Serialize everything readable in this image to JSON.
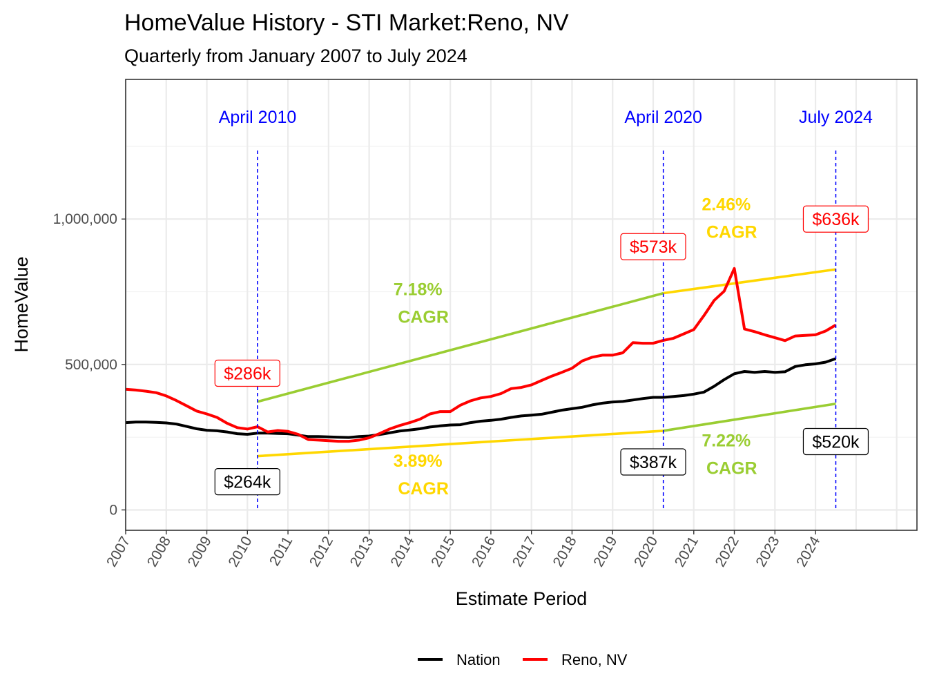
{
  "chart_data": {
    "type": "line",
    "title": "HomeValue History - STI Market:Reno, NV",
    "subtitle": "Quarterly from January 2007 to July 2024",
    "xlabel": "Estimate Period",
    "ylabel": "HomeValue",
    "xlim": [
      2007,
      2026.5
    ],
    "ylim": [
      -70000,
      1480000
    ],
    "x_ticks": [
      2007,
      2008,
      2009,
      2010,
      2011,
      2012,
      2013,
      2014,
      2015,
      2016,
      2017,
      2018,
      2019,
      2020,
      2021,
      2022,
      2023,
      2024
    ],
    "y_ticks": [
      {
        "value": 0,
        "label": "0"
      },
      {
        "value": 500000,
        "label": "500,000"
      },
      {
        "value": 1000000,
        "label": "1,000,000"
      }
    ],
    "grid": true,
    "legend_position": "bottom",
    "series": [
      {
        "name": "Nation",
        "color": "#000000",
        "x": [
          2007.0,
          2007.25,
          2007.5,
          2007.75,
          2008.0,
          2008.25,
          2008.5,
          2008.75,
          2009.0,
          2009.25,
          2009.5,
          2009.75,
          2010.0,
          2010.25,
          2010.5,
          2010.75,
          2011.0,
          2011.25,
          2011.5,
          2011.75,
          2012.0,
          2012.25,
          2012.5,
          2012.75,
          2013.0,
          2013.25,
          2013.5,
          2013.75,
          2014.0,
          2014.25,
          2014.5,
          2014.75,
          2015.0,
          2015.25,
          2015.5,
          2015.75,
          2016.0,
          2016.25,
          2016.5,
          2016.75,
          2017.0,
          2017.25,
          2017.5,
          2017.75,
          2018.0,
          2018.25,
          2018.5,
          2018.75,
          2019.0,
          2019.25,
          2019.5,
          2019.75,
          2020.0,
          2020.25,
          2020.5,
          2020.75,
          2021.0,
          2021.25,
          2021.5,
          2021.75,
          2022.0,
          2022.25,
          2022.5,
          2022.75,
          2023.0,
          2023.25,
          2023.5,
          2023.75,
          2024.0,
          2024.25,
          2024.5
        ],
        "values": [
          300000,
          302000,
          302000,
          301000,
          299000,
          295000,
          287000,
          279000,
          274000,
          272000,
          268000,
          262000,
          260000,
          264000,
          264000,
          263000,
          262000,
          257000,
          252000,
          252000,
          251000,
          250000,
          249000,
          252000,
          254000,
          259000,
          265000,
          271000,
          275000,
          279000,
          285000,
          289000,
          292000,
          293000,
          300000,
          305000,
          308000,
          312000,
          318000,
          323000,
          326000,
          329000,
          336000,
          343000,
          348000,
          353000,
          361000,
          367000,
          371000,
          373000,
          378000,
          383000,
          387000,
          387000,
          390000,
          393000,
          398000,
          405000,
          425000,
          448000,
          468000,
          476000,
          473000,
          476000,
          473000,
          475000,
          493000,
          499000,
          502000,
          508000,
          520000
        ]
      },
      {
        "name": "Reno, NV",
        "color": "#ff0000",
        "x": [
          2007.0,
          2007.25,
          2007.5,
          2007.75,
          2008.0,
          2008.25,
          2008.5,
          2008.75,
          2009.0,
          2009.25,
          2009.5,
          2009.75,
          2010.0,
          2010.25,
          2010.5,
          2010.75,
          2011.0,
          2011.25,
          2011.5,
          2011.75,
          2012.0,
          2012.25,
          2012.5,
          2012.75,
          2013.0,
          2013.25,
          2013.5,
          2013.75,
          2014.0,
          2014.25,
          2014.5,
          2014.75,
          2015.0,
          2015.25,
          2015.5,
          2015.75,
          2016.0,
          2016.25,
          2016.5,
          2016.75,
          2017.0,
          2017.25,
          2017.5,
          2017.75,
          2018.0,
          2018.25,
          2018.5,
          2018.75,
          2019.0,
          2019.25,
          2019.5,
          2019.75,
          2020.0,
          2020.25,
          2020.5,
          2020.75,
          2021.0,
          2021.25,
          2021.5,
          2021.75,
          2022.0,
          2022.25,
          2022.5,
          2022.75,
          2023.0,
          2023.25,
          2023.5,
          2023.75,
          2024.0,
          2024.25,
          2024.5
        ],
        "values": [
          415000,
          412000,
          408000,
          403000,
          392000,
          376000,
          358000,
          340000,
          330000,
          318000,
          298000,
          283000,
          278000,
          286000,
          268000,
          273000,
          270000,
          260000,
          242000,
          240000,
          238000,
          236000,
          236000,
          240000,
          248000,
          262000,
          278000,
          290000,
          300000,
          312000,
          330000,
          338000,
          338000,
          360000,
          375000,
          385000,
          390000,
          400000,
          417000,
          421000,
          430000,
          445000,
          460000,
          473000,
          487000,
          512000,
          525000,
          532000,
          532000,
          540000,
          575000,
          573000,
          573000,
          583000,
          590000,
          605000,
          620000,
          668000,
          720000,
          752000,
          830000,
          622000,
          613000,
          602000,
          592000,
          582000,
          598000,
          600000,
          602000,
          615000,
          636000
        ]
      }
    ],
    "events": [
      {
        "x": 2010.25,
        "label": "April 2010"
      },
      {
        "x": 2020.25,
        "label": "April 2020"
      },
      {
        "x": 2024.5,
        "label": "July 2024"
      }
    ],
    "value_labels": [
      {
        "x": 2010.0,
        "y": 470000,
        "text": "$286k",
        "series": "Reno, NV"
      },
      {
        "x": 2010.0,
        "y": 97000,
        "text": "$264k",
        "series": "Nation"
      },
      {
        "x": 2020.0,
        "y": 905000,
        "text": "$573k",
        "series": "Reno, NV"
      },
      {
        "x": 2020.0,
        "y": 165000,
        "text": "$387k",
        "series": "Nation"
      },
      {
        "x": 2024.5,
        "y": 1000000,
        "text": "$636k",
        "series": "Reno, NV"
      },
      {
        "x": 2024.5,
        "y": 235000,
        "text": "$520k",
        "series": "Nation"
      }
    ],
    "trend_lines": [
      {
        "x": [
          2010.25,
          2020.25
        ],
        "y": [
          372000,
          745000
        ],
        "color": "#9acd32"
      },
      {
        "x": [
          2020.25,
          2024.5
        ],
        "y": [
          745000,
          827000
        ],
        "color": "#ffd700"
      },
      {
        "x": [
          2010.25,
          2020.25
        ],
        "y": [
          185000,
          272000
        ],
        "color": "#ffd700"
      },
      {
        "x": [
          2020.25,
          2024.5
        ],
        "y": [
          272000,
          365000
        ],
        "color": "#9acd32"
      }
    ],
    "cagr_labels": [
      {
        "x": 2014.2,
        "y": 738000,
        "pct": "7.18%",
        "word": "CAGR",
        "color": "#9acd32"
      },
      {
        "x": 2021.8,
        "y": 1030000,
        "pct": "2.46%",
        "word": "CAGR",
        "color": "#ffd700"
      },
      {
        "x": 2014.2,
        "y": 148000,
        "pct": "3.89%",
        "word": "CAGR",
        "color": "#ffd700"
      },
      {
        "x": 2021.8,
        "y": 218000,
        "pct": "7.22%",
        "word": "CAGR",
        "color": "#9acd32"
      }
    ]
  }
}
